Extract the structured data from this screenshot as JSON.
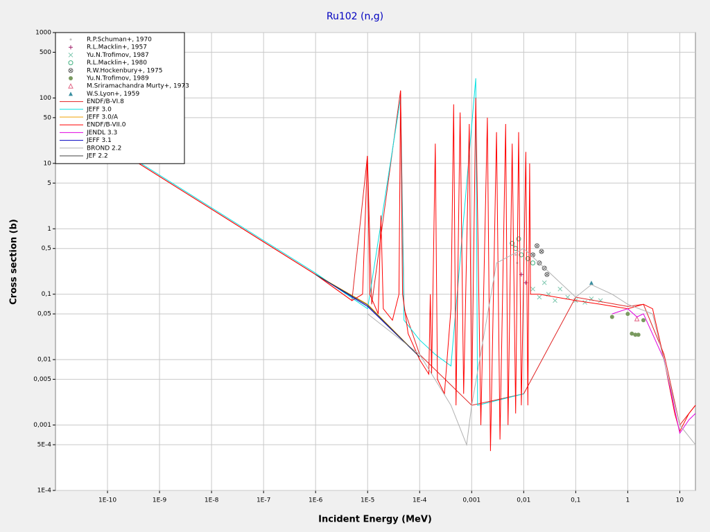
{
  "chart_data": {
    "type": "line",
    "title": "Ru102 (n,g)",
    "x_label": "Incident Energy (MeV)",
    "y_label": "Cross section (b)",
    "x_scale": "log",
    "y_scale": "log",
    "grid": true,
    "legend": "upper-left",
    "xlim": [
      1e-11,
      20
    ],
    "ylim": [
      0.0001,
      1000
    ],
    "xticks": [
      {
        "value": 1e-10,
        "label": "1E-10"
      },
      {
        "value": 1e-09,
        "label": "1E-9"
      },
      {
        "value": 1e-08,
        "label": "1E-8"
      },
      {
        "value": 1e-07,
        "label": "1E-7"
      },
      {
        "value": 1e-06,
        "label": "1E-6"
      },
      {
        "value": 1e-05,
        "label": "1E-5"
      },
      {
        "value": 0.0001,
        "label": "1E-4"
      },
      {
        "value": 0.001,
        "label": "0,001"
      },
      {
        "value": 0.01,
        "label": "0,01"
      },
      {
        "value": 0.1,
        "label": "0,1"
      },
      1,
      10
    ],
    "yticks": [
      {
        "value": 0.0001,
        "label": "1E-4"
      },
      {
        "value": 0.0005,
        "label": "5E-4"
      },
      {
        "value": 0.001,
        "label": "0,001"
      },
      {
        "value": 0.005,
        "label": "0,005"
      },
      {
        "value": 0.01,
        "label": "0,01"
      },
      {
        "value": 0.05,
        "label": "0,05"
      },
      {
        "value": 0.1,
        "label": "0,1"
      },
      {
        "value": 0.5,
        "label": "0,5"
      },
      1,
      5,
      10,
      50,
      100,
      500,
      1000
    ],
    "series": [
      {
        "name": "R.P.Schuman+, 1970",
        "color": "#c0c0c0",
        "marker": "dot",
        "x": [
          0.0065,
          0.007,
          0.0075
        ],
        "values": [
          0.55,
          0.4,
          0.3
        ]
      },
      {
        "name": "R.L.Macklin+, 1957",
        "color": "#a0206a",
        "marker": "plus",
        "x": [
          0.009,
          0.011
        ],
        "values": [
          0.2,
          0.15
        ]
      },
      {
        "name": "Yu.N.Trofimov, 1987",
        "color": "#80c8b0",
        "marker": "x",
        "x": [
          0.015,
          0.02,
          0.025,
          0.03,
          0.04,
          0.05,
          0.07,
          0.1,
          0.15,
          0.2,
          0.3
        ],
        "values": [
          0.12,
          0.09,
          0.15,
          0.1,
          0.08,
          0.12,
          0.09,
          0.08,
          0.075,
          0.085,
          0.08
        ]
      },
      {
        "name": "R.L.Macklin+, 1980",
        "color": "#40b080",
        "marker": "circle",
        "x": [
          0.006,
          0.007,
          0.008,
          0.009,
          0.012,
          0.015
        ],
        "values": [
          0.6,
          0.5,
          0.7,
          0.4,
          0.35,
          0.3
        ]
      },
      {
        "name": "R.W.Hockenbury+, 1975",
        "color": "#606060",
        "marker": "circle-x",
        "x": [
          0.015,
          0.018,
          0.02,
          0.022,
          0.025,
          0.028
        ],
        "values": [
          0.4,
          0.55,
          0.3,
          0.45,
          0.25,
          0.2
        ]
      },
      {
        "name": "Yu.N.Trofimov, 1989",
        "color": "#7a9a60",
        "marker": "disc",
        "x": [
          0.5,
          1,
          1.2,
          1.4,
          1.6,
          2
        ],
        "values": [
          0.045,
          0.05,
          0.025,
          0.024,
          0.024,
          0.04
        ]
      },
      {
        "name": "M.Sriramachandra Murty+, 1973",
        "color": "#e06080",
        "marker": "triangle",
        "x": [
          1.5
        ],
        "values": [
          0.042
        ]
      },
      {
        "name": "W.S.Lyon+, 1959",
        "color": "#3a8fa0",
        "marker": "triangle-filled",
        "x": [
          0.2
        ],
        "values": [
          0.15
        ]
      },
      {
        "name": "ENDF/B-VI.8",
        "color": "#e02020",
        "x": [
          1e-11,
          1e-06,
          5e-06,
          9.9e-06,
          1.2e-05,
          4.3e-05,
          5e-05,
          0.0001,
          0.001,
          0.01,
          0.1,
          1,
          2,
          5,
          10,
          20
        ],
        "values": [
          63,
          0.2,
          0.08,
          13,
          0.07,
          130,
          0.06,
          0.012,
          0.002,
          0.003,
          0.09,
          0.065,
          0.07,
          0.012,
          0.001,
          0.002
        ]
      },
      {
        "name": "JEFF 3.0",
        "color": "#00e0e0",
        "x": [
          1e-11,
          1e-06,
          1e-05,
          4.3e-05,
          5e-05,
          0.0001,
          0.0002,
          0.0004,
          0.0012,
          0.0013,
          0.01
        ],
        "values": [
          66,
          0.21,
          0.06,
          100,
          0.04,
          0.02,
          0.012,
          0.008,
          200,
          0.002,
          0.003
        ]
      },
      {
        "name": "JEFF 3.0/A",
        "color": "#f0a000",
        "x": [
          1e-06,
          1e-05,
          0.0001
        ],
        "values": [
          0.2,
          0.07,
          0.011
        ]
      },
      {
        "name": "ENDF/B-VII.0",
        "color": "#ff0000",
        "x": [
          1e-11,
          1e-10,
          1e-09,
          1e-08,
          1e-07,
          1e-06,
          5e-06,
          8e-06,
          9.9e-06,
          1.1e-05,
          1.6e-05,
          1.8e-05,
          2e-05,
          3e-05,
          4e-05,
          4.3e-05,
          4.7e-05,
          6e-05,
          0.0001,
          0.00015,
          0.00016,
          0.00017,
          0.0002,
          0.00022,
          0.0003,
          0.0004,
          0.00045,
          0.0005,
          0.0006,
          0.0007,
          0.0009,
          0.001,
          0.0012,
          0.0015,
          0.002,
          0.0023,
          0.003,
          0.0035,
          0.0045,
          0.005,
          0.006,
          0.007,
          0.008,
          0.009,
          0.011,
          0.012,
          0.013,
          0.0135,
          0.02,
          0.1,
          0.3,
          1,
          2,
          3,
          5,
          8,
          10,
          15,
          20
        ],
        "values": [
          63,
          20,
          6.3,
          2,
          0.63,
          0.2,
          0.08,
          0.1,
          13,
          0.1,
          0.05,
          1.6,
          0.06,
          0.04,
          0.1,
          130,
          0.1,
          0.025,
          0.01,
          0.006,
          0.1,
          0.006,
          20,
          0.005,
          0.003,
          0.06,
          80,
          0.002,
          60,
          0.003,
          40,
          0.002,
          100,
          0.001,
          50,
          0.0004,
          30,
          0.0006,
          40,
          0.001,
          20,
          0.0015,
          30,
          0.002,
          15,
          0.002,
          10,
          0.1,
          0.1,
          0.08,
          0.07,
          0.06,
          0.07,
          0.06,
          0.01,
          0.0015,
          0.0008,
          0.0015,
          0.002
        ]
      },
      {
        "name": "JENDL 3.3",
        "color": "#e000e0",
        "x": [
          0.5,
          1,
          1.5,
          2,
          5,
          10,
          15,
          20
        ],
        "values": [
          0.05,
          0.06,
          0.045,
          0.05,
          0.01,
          0.00075,
          0.0012,
          0.0015
        ]
      },
      {
        "name": "JEFF 3.1",
        "color": "#0000c0",
        "x": [
          1e-06,
          1e-05,
          0.0001
        ],
        "values": [
          0.2,
          0.065,
          0.011
        ]
      },
      {
        "name": "BROND 2.2",
        "color": "#b0b0b0",
        "x": [
          1e-05,
          0.0001,
          0.0004,
          0.0008,
          0.001,
          0.003,
          0.01,
          0.1,
          0.2,
          0.5,
          1,
          3,
          10,
          20
        ],
        "values": [
          0.05,
          0.012,
          0.002,
          0.0005,
          0.002,
          0.3,
          0.5,
          0.09,
          0.14,
          0.1,
          0.07,
          0.05,
          0.001,
          0.0005
        ]
      },
      {
        "name": "JEF 2.2",
        "color": "#404040",
        "x": [
          1e-06,
          1e-05,
          0.0001
        ],
        "values": [
          0.2,
          0.068,
          0.011
        ]
      }
    ]
  }
}
